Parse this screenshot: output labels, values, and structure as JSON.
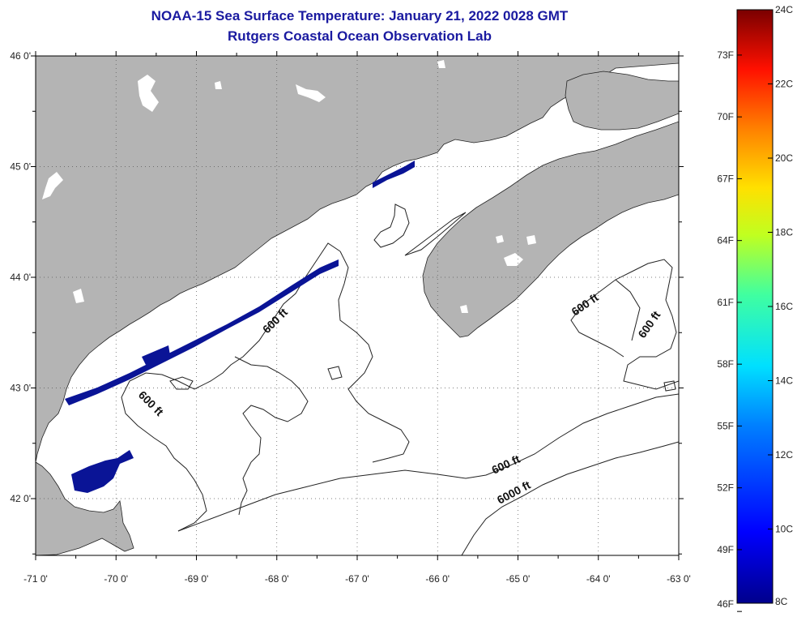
{
  "title_line1": "NOAA-15 Sea Surface Temperature:  January 21, 2022 0028 GMT",
  "title_line2": "Rutgers Coastal Ocean Observation Lab",
  "lat_ticks": [
    {
      "lat": 46,
      "label": "46 0'"
    },
    {
      "lat": 45,
      "label": "45 0'"
    },
    {
      "lat": 44,
      "label": "44 0'"
    },
    {
      "lat": 43,
      "label": "43 0'"
    },
    {
      "lat": 42,
      "label": "42 0'"
    }
  ],
  "lon_ticks": [
    {
      "lon": -71,
      "label": "-71 0'"
    },
    {
      "lon": -70,
      "label": "-70 0'"
    },
    {
      "lon": -69,
      "label": "-69 0'"
    },
    {
      "lon": -68,
      "label": "-68 0'"
    },
    {
      "lon": -67,
      "label": "-67 0'"
    },
    {
      "lon": -66,
      "label": "-66 0'"
    },
    {
      "lon": -65,
      "label": "-65 0'"
    },
    {
      "lon": -64,
      "label": "-64 0'"
    },
    {
      "lon": -63,
      "label": "-63 0'"
    }
  ],
  "contour_labels": [
    "600 ft",
    "600 ft",
    "600 ft",
    "600 ft",
    "600 ft",
    "6000 ft"
  ],
  "colorbar": {
    "fahrenheit_labels": [
      "73F",
      "70F",
      "67F",
      "64F",
      "61F",
      "58F",
      "55F",
      "52F",
      "49F",
      "46F"
    ],
    "celsius_labels": [
      "24C",
      "22C",
      "20C",
      "18C",
      "16C",
      "14C",
      "12C",
      "10C",
      "8C"
    ]
  },
  "colors": {
    "land": "#b4b4b4",
    "sst_cold": "#0a1496",
    "title": "#1a1aa0"
  }
}
